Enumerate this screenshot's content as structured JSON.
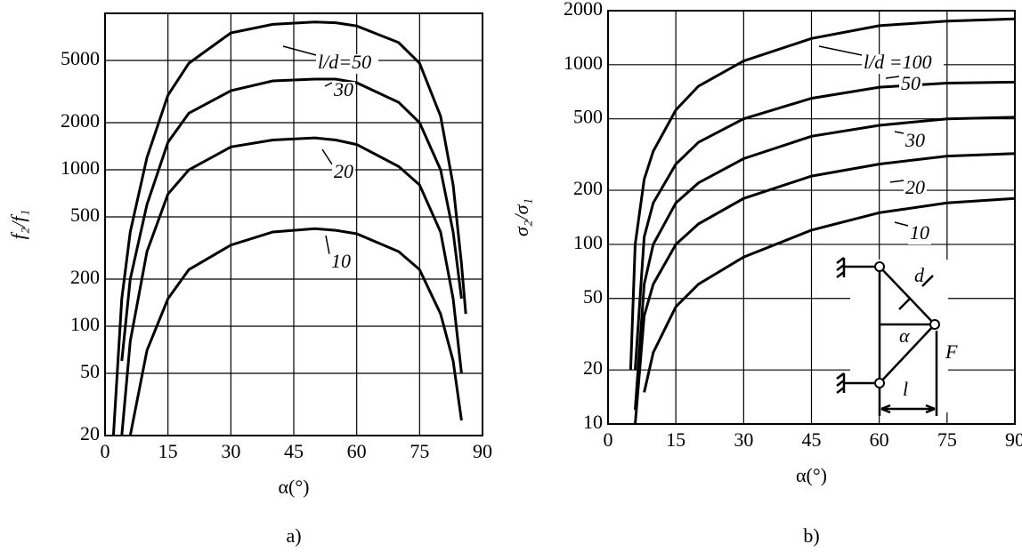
{
  "chart_data": [
    {
      "type": "line",
      "caption": "a)",
      "x_label": "α(°)",
      "y_label": "f₂/f₁",
      "log_y": true,
      "grid": true,
      "xlim": [
        0,
        90
      ],
      "xticks": [
        0,
        15,
        30,
        45,
        60,
        75,
        90
      ],
      "ylim": [
        20,
        10000
      ],
      "yticks": [
        20,
        50,
        100,
        200,
        500,
        1000,
        2000,
        5000
      ],
      "x": [
        2,
        4,
        6,
        10,
        15,
        20,
        30,
        40,
        50,
        55,
        60,
        70,
        75,
        80,
        83,
        85,
        86
      ],
      "series": [
        {
          "name": "l/d=50",
          "color": "#000000",
          "values": [
            20,
            150,
            400,
            1200,
            3000,
            4800,
            7500,
            8500,
            8800,
            8700,
            8300,
            6500,
            4800,
            2200,
            800,
            250,
            120
          ]
        },
        {
          "name": "30",
          "color": "#000000",
          "values": [
            null,
            60,
            200,
            600,
            1500,
            2300,
            3200,
            3700,
            3800,
            3800,
            3600,
            2700,
            2000,
            1000,
            400,
            150,
            null
          ]
        },
        {
          "name": "20",
          "color": "#000000",
          "values": [
            null,
            20,
            80,
            300,
            700,
            1000,
            1400,
            1550,
            1600,
            1550,
            1450,
            1050,
            800,
            400,
            150,
            50,
            null
          ]
        },
        {
          "name": "10",
          "color": "#000000",
          "values": [
            null,
            null,
            20,
            70,
            150,
            230,
            330,
            400,
            420,
            410,
            390,
            300,
            230,
            120,
            60,
            25,
            null
          ]
        }
      ]
    },
    {
      "type": "line",
      "caption": "b)",
      "x_label": "α(°)",
      "y_label": "σ₂/σ₁",
      "log_y": true,
      "grid": true,
      "xlim": [
        0,
        90
      ],
      "xticks": [
        0,
        15,
        30,
        45,
        60,
        75,
        90
      ],
      "ylim": [
        10,
        2000
      ],
      "yticks": [
        10,
        20,
        50,
        100,
        200,
        500,
        1000,
        2000
      ],
      "x": [
        4,
        5,
        6,
        8,
        10,
        15,
        20,
        30,
        45,
        60,
        75,
        90
      ],
      "series": [
        {
          "name": "l/d =100",
          "color": "#000000",
          "values": [
            null,
            20,
            100,
            230,
            330,
            560,
            760,
            1050,
            1400,
            1650,
            1750,
            1800
          ]
        },
        {
          "name": "50",
          "color": "#000000",
          "values": [
            null,
            null,
            20,
            110,
            170,
            280,
            370,
            500,
            650,
            750,
            790,
            800
          ]
        },
        {
          "name": "30",
          "color": "#000000",
          "values": [
            null,
            null,
            12,
            60,
            100,
            170,
            220,
            300,
            400,
            460,
            500,
            510
          ]
        },
        {
          "name": "20",
          "color": "#000000",
          "values": [
            null,
            null,
            10,
            40,
            60,
            100,
            130,
            180,
            240,
            280,
            310,
            320
          ]
        },
        {
          "name": "10",
          "color": "#000000",
          "values": [
            null,
            null,
            null,
            15,
            25,
            45,
            60,
            85,
            120,
            150,
            170,
            180
          ]
        }
      ],
      "diagram_labels": [
        "d",
        "α",
        "F",
        "l"
      ]
    }
  ]
}
